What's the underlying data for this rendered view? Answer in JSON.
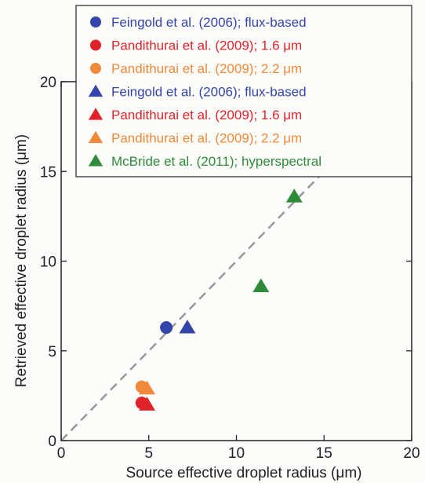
{
  "chart_data": {
    "type": "scatter",
    "xlabel": "Source effective droplet radius (μm)",
    "ylabel": "Retrieved effective droplet radius (μm)",
    "xlim": [
      0,
      20
    ],
    "ylim": [
      0,
      20
    ],
    "xticks": [
      "0",
      "5",
      "10",
      "15",
      "20"
    ],
    "yticks": [
      "0",
      "5",
      "10",
      "15",
      "20"
    ],
    "grid": false,
    "legend_position": "top-right",
    "reference_line": {
      "type": "1:1",
      "style": "dashed",
      "color": "#999999"
    },
    "series": [
      {
        "name": "Feingold et al. (2006); flux-based",
        "marker": "circle",
        "color": "#3344aa",
        "points": [
          [
            6.0,
            6.3
          ]
        ]
      },
      {
        "name": "Pandithurai et al. (2009); 1.6 μm",
        "marker": "circle",
        "color": "#e0232a",
        "points": [
          [
            4.6,
            2.1
          ]
        ]
      },
      {
        "name": "Pandithurai et al. (2009); 2.2 μm",
        "marker": "circle",
        "color": "#f08a3a",
        "points": [
          [
            4.6,
            3.0
          ]
        ]
      },
      {
        "name": "Feingold et al. (2006); flux-based",
        "marker": "triangle",
        "color": "#3344aa",
        "points": [
          [
            7.2,
            6.3
          ]
        ]
      },
      {
        "name": "Pandithurai et al. (2009); 1.6 μm",
        "marker": "triangle",
        "color": "#e0232a",
        "points": [
          [
            4.9,
            2.0
          ]
        ]
      },
      {
        "name": "Pandithurai et al. (2009); 2.2 μm",
        "marker": "triangle",
        "color": "#f08a3a",
        "points": [
          [
            4.9,
            2.9
          ]
        ]
      },
      {
        "name": "McBride et al. (2011); hyperspectral",
        "marker": "triangle",
        "color": "#2e8b3a",
        "points": [
          [
            11.4,
            8.6
          ],
          [
            13.3,
            13.6
          ]
        ]
      }
    ]
  }
}
